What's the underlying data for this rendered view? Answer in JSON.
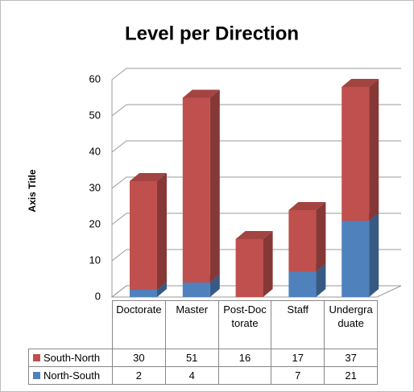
{
  "chart_data": {
    "type": "bar",
    "stacked": true,
    "title": "Level per Direction",
    "y_label": "Axis Title",
    "categories": [
      "Doctorate",
      "Master",
      "Post-Doctorate",
      "Staff",
      "Undergraduate"
    ],
    "series": [
      {
        "name": "North-South",
        "color": "#4f81bd",
        "values": [
          2,
          4,
          null,
          7,
          21
        ]
      },
      {
        "name": "South-North",
        "color": "#c0504d",
        "values": [
          30,
          51,
          16,
          17,
          37
        ]
      }
    ],
    "ylim": [
      0,
      60
    ],
    "yticks": [
      0,
      10,
      20,
      30,
      40,
      50,
      60
    ],
    "grid": true
  }
}
